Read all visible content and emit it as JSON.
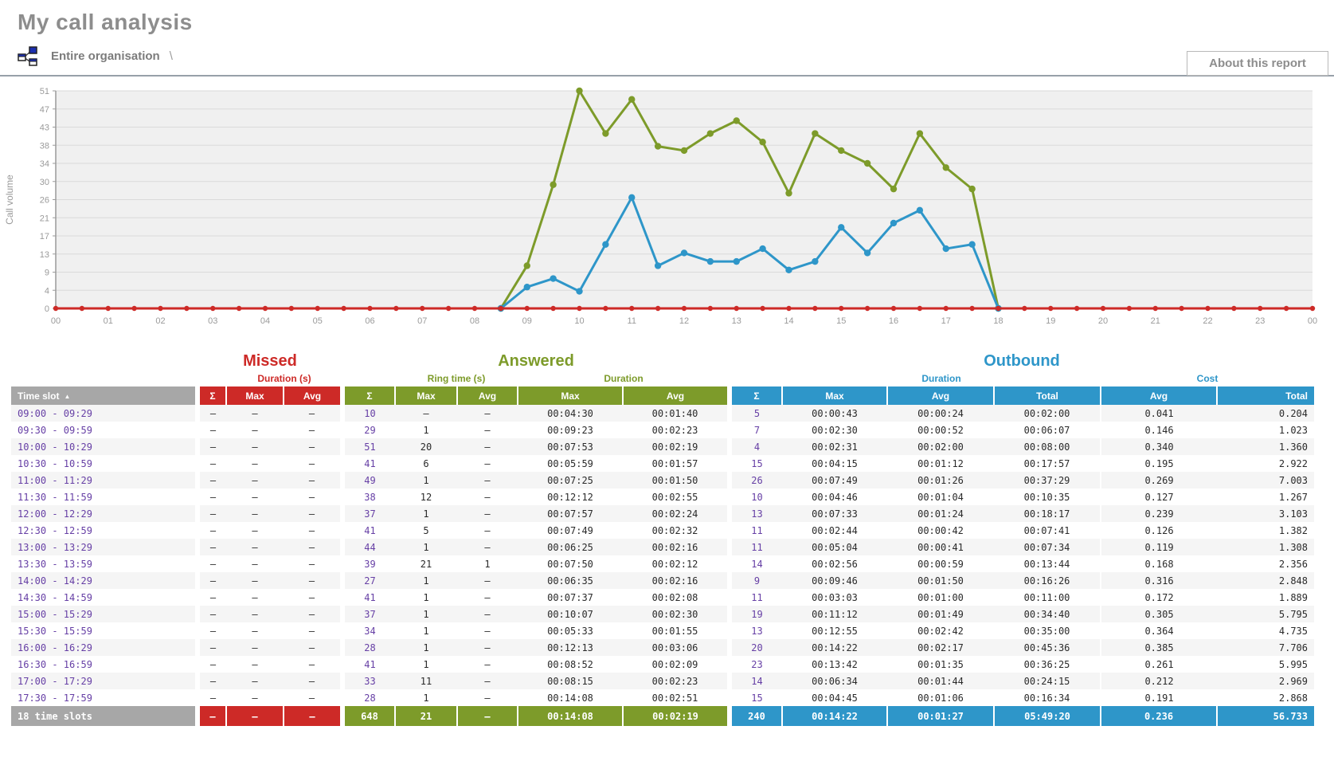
{
  "page": {
    "title": "My call analysis"
  },
  "breadcrumb": {
    "label": "Entire organisation",
    "separator": "\\"
  },
  "about_button": {
    "label": "About this report"
  },
  "colors": {
    "missed": "#cd2a27",
    "answered": "#7d9b2a",
    "outbound": "#2e96c9",
    "header_gray": "#a7a7a7",
    "link_purple": "#663fa5"
  },
  "chart_data": {
    "type": "line",
    "ylabel": "Call volume",
    "ylim": [
      0,
      51
    ],
    "y_ticks": [
      0,
      4,
      9,
      13,
      17,
      21,
      26,
      30,
      34,
      38,
      43,
      47,
      51
    ],
    "x_hour_labels": [
      "00",
      "01",
      "02",
      "03",
      "04",
      "05",
      "06",
      "07",
      "08",
      "09",
      "10",
      "11",
      "12",
      "13",
      "14",
      "15",
      "16",
      "17",
      "18",
      "19",
      "20",
      "21",
      "22",
      "23",
      "00"
    ],
    "grid": true,
    "legend": "none",
    "series": [
      {
        "name": "Missed",
        "color": "#cd2a27",
        "x_start_hour": 0,
        "step_hours": 0.5,
        "values": [
          0,
          0,
          0,
          0,
          0,
          0,
          0,
          0,
          0,
          0,
          0,
          0,
          0,
          0,
          0,
          0,
          0,
          0,
          0,
          0,
          0,
          0,
          0,
          0,
          0,
          0,
          0,
          0,
          0,
          0,
          0,
          0,
          0,
          0,
          0,
          0,
          0,
          0,
          0,
          0,
          0,
          0,
          0,
          0,
          0,
          0,
          0,
          0,
          0
        ]
      },
      {
        "name": "Answered",
        "color": "#7d9b2a",
        "x_start_hour": 8.5,
        "step_hours": 0.5,
        "values": [
          0,
          10,
          29,
          51,
          41,
          49,
          38,
          37,
          41,
          44,
          39,
          27,
          41,
          37,
          34,
          28,
          41,
          33,
          28,
          0
        ]
      },
      {
        "name": "Outbound",
        "color": "#2e96c9",
        "x_start_hour": 8.5,
        "step_hours": 0.5,
        "values": [
          0,
          5,
          7,
          4,
          15,
          26,
          10,
          13,
          11,
          11,
          14,
          9,
          11,
          19,
          13,
          20,
          23,
          14,
          15,
          0
        ]
      }
    ]
  },
  "table": {
    "sections": [
      {
        "label": "Missed"
      },
      {
        "label": "Answered"
      },
      {
        "label": "Outbound"
      }
    ],
    "groups": {
      "missed_duration": "Duration (s)",
      "ring_time": "Ring time (s)",
      "answered_duration": "Duration",
      "outbound_duration": "Duration",
      "cost": "Cost"
    },
    "sort_indicator": "▲",
    "columns": [
      "Time slot",
      "Σ",
      "Max",
      "Avg",
      "Σ",
      "Max",
      "Avg",
      "Max",
      "Avg",
      "Σ",
      "Max",
      "Avg",
      "Total",
      "Avg",
      "Total"
    ],
    "rows": [
      [
        "09:00 - 09:29",
        "–",
        "–",
        "–",
        "10",
        "–",
        "–",
        "00:04:30",
        "00:01:40",
        "5",
        "00:00:43",
        "00:00:24",
        "00:02:00",
        "0.041",
        "0.204"
      ],
      [
        "09:30 - 09:59",
        "–",
        "–",
        "–",
        "29",
        "1",
        "–",
        "00:09:23",
        "00:02:23",
        "7",
        "00:02:30",
        "00:00:52",
        "00:06:07",
        "0.146",
        "1.023"
      ],
      [
        "10:00 - 10:29",
        "–",
        "–",
        "–",
        "51",
        "20",
        "–",
        "00:07:53",
        "00:02:19",
        "4",
        "00:02:31",
        "00:02:00",
        "00:08:00",
        "0.340",
        "1.360"
      ],
      [
        "10:30 - 10:59",
        "–",
        "–",
        "–",
        "41",
        "6",
        "–",
        "00:05:59",
        "00:01:57",
        "15",
        "00:04:15",
        "00:01:12",
        "00:17:57",
        "0.195",
        "2.922"
      ],
      [
        "11:00 - 11:29",
        "–",
        "–",
        "–",
        "49",
        "1",
        "–",
        "00:07:25",
        "00:01:50",
        "26",
        "00:07:49",
        "00:01:26",
        "00:37:29",
        "0.269",
        "7.003"
      ],
      [
        "11:30 - 11:59",
        "–",
        "–",
        "–",
        "38",
        "12",
        "–",
        "00:12:12",
        "00:02:55",
        "10",
        "00:04:46",
        "00:01:04",
        "00:10:35",
        "0.127",
        "1.267"
      ],
      [
        "12:00 - 12:29",
        "–",
        "–",
        "–",
        "37",
        "1",
        "–",
        "00:07:57",
        "00:02:24",
        "13",
        "00:07:33",
        "00:01:24",
        "00:18:17",
        "0.239",
        "3.103"
      ],
      [
        "12:30 - 12:59",
        "–",
        "–",
        "–",
        "41",
        "5",
        "–",
        "00:07:49",
        "00:02:32",
        "11",
        "00:02:44",
        "00:00:42",
        "00:07:41",
        "0.126",
        "1.382"
      ],
      [
        "13:00 - 13:29",
        "–",
        "–",
        "–",
        "44",
        "1",
        "–",
        "00:06:25",
        "00:02:16",
        "11",
        "00:05:04",
        "00:00:41",
        "00:07:34",
        "0.119",
        "1.308"
      ],
      [
        "13:30 - 13:59",
        "–",
        "–",
        "–",
        "39",
        "21",
        "1",
        "00:07:50",
        "00:02:12",
        "14",
        "00:02:56",
        "00:00:59",
        "00:13:44",
        "0.168",
        "2.356"
      ],
      [
        "14:00 - 14:29",
        "–",
        "–",
        "–",
        "27",
        "1",
        "–",
        "00:06:35",
        "00:02:16",
        "9",
        "00:09:46",
        "00:01:50",
        "00:16:26",
        "0.316",
        "2.848"
      ],
      [
        "14:30 - 14:59",
        "–",
        "–",
        "–",
        "41",
        "1",
        "–",
        "00:07:37",
        "00:02:08",
        "11",
        "00:03:03",
        "00:01:00",
        "00:11:00",
        "0.172",
        "1.889"
      ],
      [
        "15:00 - 15:29",
        "–",
        "–",
        "–",
        "37",
        "1",
        "–",
        "00:10:07",
        "00:02:30",
        "19",
        "00:11:12",
        "00:01:49",
        "00:34:40",
        "0.305",
        "5.795"
      ],
      [
        "15:30 - 15:59",
        "–",
        "–",
        "–",
        "34",
        "1",
        "–",
        "00:05:33",
        "00:01:55",
        "13",
        "00:12:55",
        "00:02:42",
        "00:35:00",
        "0.364",
        "4.735"
      ],
      [
        "16:00 - 16:29",
        "–",
        "–",
        "–",
        "28",
        "1",
        "–",
        "00:12:13",
        "00:03:06",
        "20",
        "00:14:22",
        "00:02:17",
        "00:45:36",
        "0.385",
        "7.706"
      ],
      [
        "16:30 - 16:59",
        "–",
        "–",
        "–",
        "41",
        "1",
        "–",
        "00:08:52",
        "00:02:09",
        "23",
        "00:13:42",
        "00:01:35",
        "00:36:25",
        "0.261",
        "5.995"
      ],
      [
        "17:00 - 17:29",
        "–",
        "–",
        "–",
        "33",
        "11",
        "–",
        "00:08:15",
        "00:02:23",
        "14",
        "00:06:34",
        "00:01:44",
        "00:24:15",
        "0.212",
        "2.969"
      ],
      [
        "17:30 - 17:59",
        "–",
        "–",
        "–",
        "28",
        "1",
        "–",
        "00:14:08",
        "00:02:51",
        "15",
        "00:04:45",
        "00:01:06",
        "00:16:34",
        "0.191",
        "2.868"
      ]
    ],
    "footer": [
      "18 time slots",
      "–",
      "–",
      "–",
      "648",
      "21",
      "–",
      "00:14:08",
      "00:02:19",
      "240",
      "00:14:22",
      "00:01:27",
      "05:49:20",
      "0.236",
      "56.733"
    ]
  }
}
